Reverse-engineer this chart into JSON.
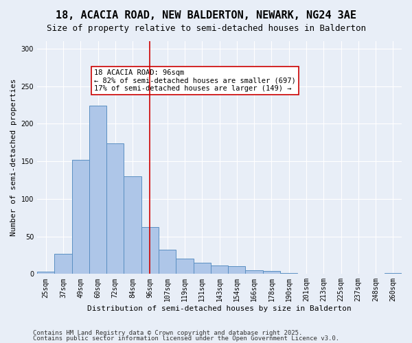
{
  "title": "18, ACACIA ROAD, NEW BALDERTON, NEWARK, NG24 3AE",
  "subtitle": "Size of property relative to semi-detached houses in Balderton",
  "xlabel": "Distribution of semi-detached houses by size in Balderton",
  "ylabel": "Number of semi-detached properties",
  "categories": [
    "25sqm",
    "37sqm",
    "49sqm",
    "60sqm",
    "72sqm",
    "84sqm",
    "96sqm",
    "107sqm",
    "119sqm",
    "131sqm",
    "143sqm",
    "154sqm",
    "166sqm",
    "178sqm",
    "190sqm",
    "201sqm",
    "213sqm",
    "225sqm",
    "237sqm",
    "248sqm",
    "260sqm"
  ],
  "values": [
    3,
    27,
    152,
    224,
    174,
    130,
    62,
    32,
    20,
    15,
    11,
    10,
    5,
    4,
    1,
    0,
    0,
    0,
    0,
    0,
    1
  ],
  "bar_color": "#aec6e8",
  "bar_edge_color": "#5a8fc2",
  "reference_line_x": 6,
  "reference_line_color": "#cc0000",
  "annotation_text": "18 ACACIA ROAD: 96sqm\n← 82% of semi-detached houses are smaller (697)\n17% of semi-detached houses are larger (149) →",
  "annotation_box_color": "#ffffff",
  "annotation_box_edge_color": "#cc0000",
  "ylim": [
    0,
    310
  ],
  "yticks": [
    0,
    50,
    100,
    150,
    200,
    250,
    300
  ],
  "background_color": "#e8eef7",
  "plot_bg_color": "#e8eef7",
  "footer1": "Contains HM Land Registry data © Crown copyright and database right 2025.",
  "footer2": "Contains public sector information licensed under the Open Government Licence v3.0.",
  "title_fontsize": 11,
  "subtitle_fontsize": 9,
  "tick_fontsize": 7,
  "label_fontsize": 8,
  "annotation_fontsize": 7.5,
  "footer_fontsize": 6.5
}
